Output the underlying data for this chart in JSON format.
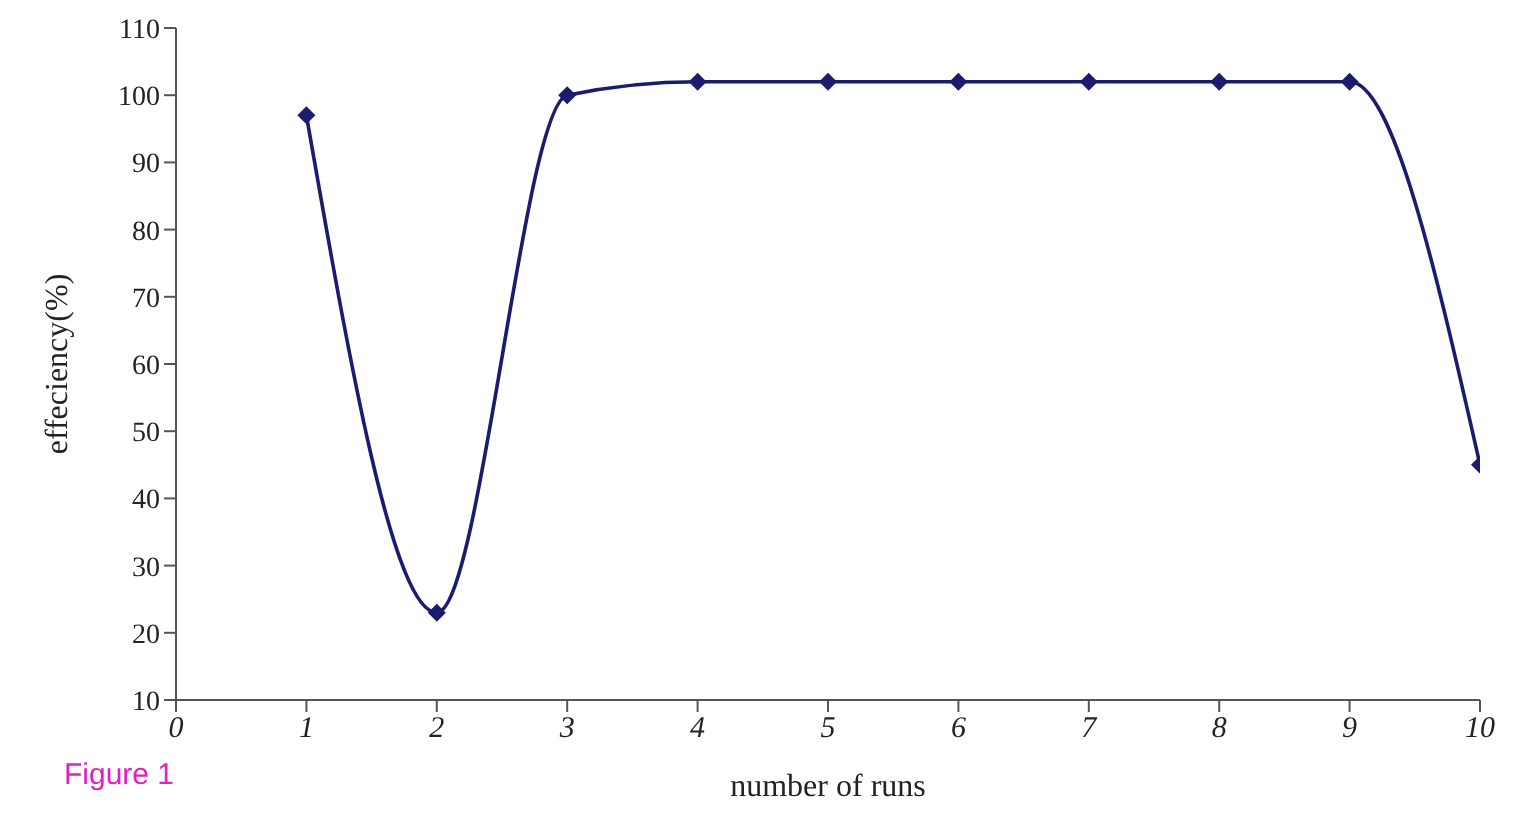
{
  "chart_data": {
    "type": "line",
    "xlabel": "number of runs",
    "ylabel": "effeciency(%)",
    "x": [
      1,
      2,
      3,
      4,
      5,
      6,
      7,
      8,
      9,
      10
    ],
    "series": [
      {
        "color": "#1c1c6e",
        "values": [
          97,
          23,
          100,
          102,
          102,
          102,
          102,
          102,
          102,
          45
        ]
      }
    ],
    "xlim": [
      0,
      10
    ],
    "xticks": [
      0,
      1,
      2,
      3,
      4,
      5,
      6,
      7,
      8,
      9,
      10
    ],
    "ylim": [
      10,
      110
    ],
    "yticks": [
      10,
      20,
      30,
      40,
      50,
      60,
      70,
      80,
      90,
      100,
      110
    ],
    "grid": false,
    "marker": "diamond",
    "line_style": "solid",
    "annotations": [
      "Figure 1"
    ]
  }
}
